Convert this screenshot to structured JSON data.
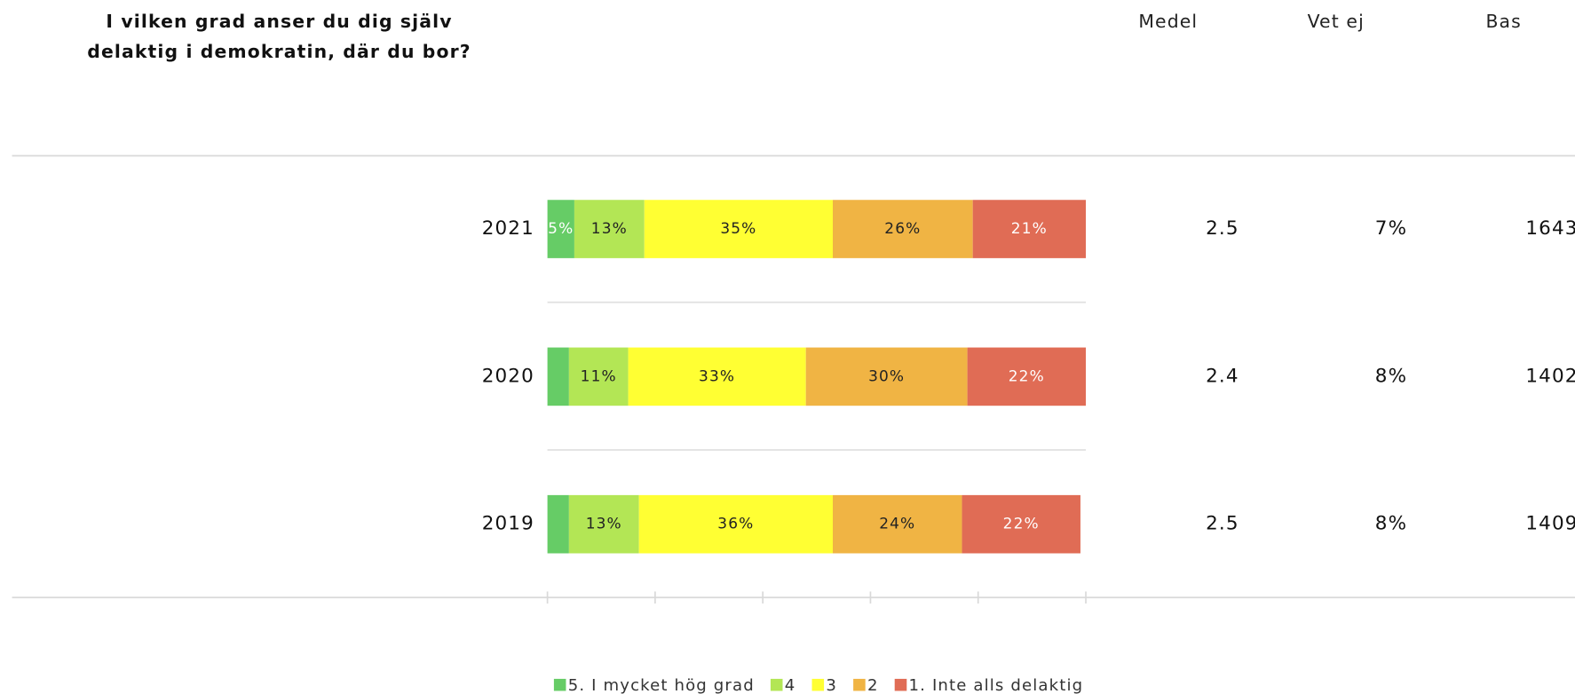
{
  "chart_data": {
    "type": "stacked_bar_horizontal",
    "title": "I vilken grad anser du dig själv delaktig i demokratin, där du bor?",
    "categories": [
      "2021",
      "2020",
      "2019"
    ],
    "xlim": [
      0,
      100
    ],
    "xticks": [
      0,
      20,
      40,
      60,
      80,
      100
    ],
    "series": [
      {
        "name": "5. I mycket hög grad",
        "color": "#66cc66",
        "values": [
          5,
          4,
          4
        ],
        "value_labels": [
          "5%",
          null,
          null
        ]
      },
      {
        "name": "4",
        "color": "#b3e655",
        "values": [
          13,
          11,
          13
        ],
        "value_labels": [
          "13%",
          "11%",
          "13%"
        ]
      },
      {
        "name": "3",
        "color": "#ffff33",
        "values": [
          35,
          33,
          36
        ],
        "value_labels": [
          "35%",
          "33%",
          "36%"
        ]
      },
      {
        "name": "2",
        "color": "#f0b444",
        "values": [
          26,
          30,
          24
        ],
        "value_labels": [
          "26%",
          "30%",
          "24%"
        ]
      },
      {
        "name": "1. Inte alls delaktig",
        "color": "#e06c55",
        "values": [
          21,
          22,
          22
        ],
        "value_labels": [
          "21%",
          "22%",
          "22%"
        ]
      }
    ],
    "columns": [
      {
        "name": "Medel",
        "values": [
          2.5,
          2.4,
          2.5
        ]
      },
      {
        "name": "Vet ej",
        "values": [
          7,
          8,
          8
        ],
        "value_labels": [
          "7%",
          "8%",
          "8%"
        ]
      },
      {
        "name": "Bas",
        "values": [
          1643,
          1402,
          1409
        ]
      }
    ]
  }
}
